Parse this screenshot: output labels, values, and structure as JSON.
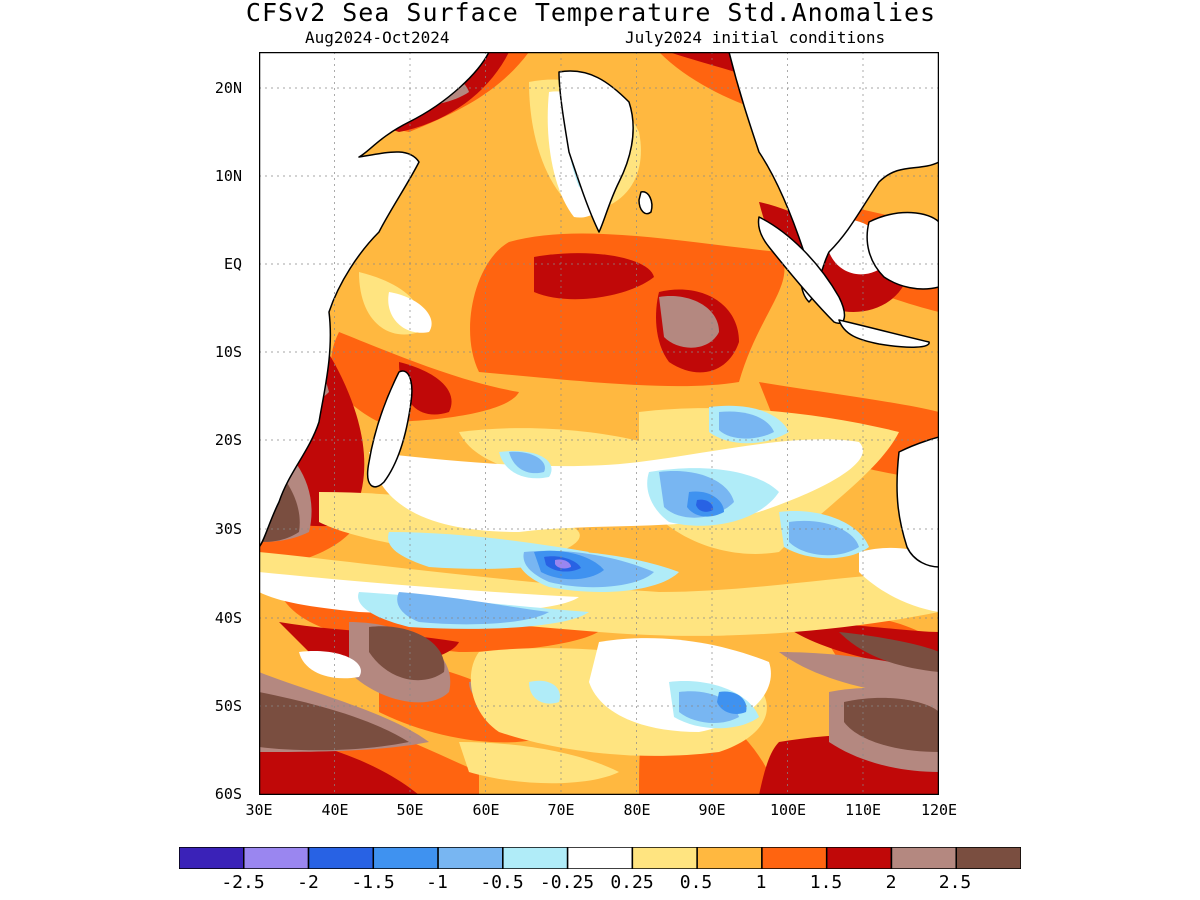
{
  "title": "CFSv2 Sea Surface Temperature Std.Anomalies",
  "period": "Aug2024-Oct2024",
  "init": "July2024 initial conditions",
  "lat_labels": [
    "20N",
    "10N",
    "EQ",
    "10S",
    "20S",
    "30S",
    "40S",
    "50S",
    "60S"
  ],
  "lon_labels": [
    "30E",
    "40E",
    "50E",
    "60E",
    "70E",
    "80E",
    "90E",
    "100E",
    "110E",
    "120E"
  ],
  "map": {
    "lon_range": [
      30,
      120
    ],
    "lat_range": [
      -60,
      24
    ],
    "projection": "lat-lon",
    "grid": "dotted",
    "dominant_anomaly": "0.5 to 1"
  },
  "colorbar": {
    "colors": [
      "#3a22b8",
      "#9a86f0",
      "#2862e4",
      "#3f92f0",
      "#78b6f2",
      "#b0ecf8",
      "#ffffff",
      "#ffe480",
      "#ffb840",
      "#ff6410",
      "#c00808",
      "#b48880",
      "#7a4e40"
    ],
    "labels": [
      "-2.5",
      "-2",
      "-1.5",
      "-1",
      "-0.5",
      "-0.25",
      "0.25",
      "0.5",
      "1",
      "1.5",
      "2",
      "2.5"
    ]
  }
}
